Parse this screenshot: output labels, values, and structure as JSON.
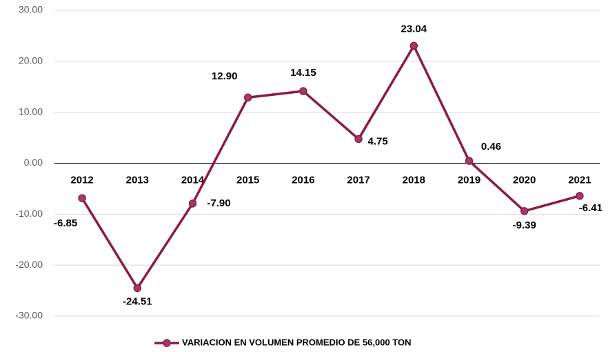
{
  "chart_data": {
    "type": "line",
    "categories": [
      "2012",
      "2013",
      "2014",
      "2015",
      "2016",
      "2017",
      "2018",
      "2019",
      "2020",
      "2021"
    ],
    "series": [
      {
        "name": "VARIACION EN VOLUMEN PROMEDIO DE 56,000 TON",
        "color": "#8b1a47",
        "values": [
          -6.85,
          -24.51,
          -7.9,
          12.9,
          14.15,
          4.75,
          23.04,
          0.46,
          -9.39,
          -6.41
        ],
        "value_labels": [
          "-6.85",
          "-24.51",
          "-7.90",
          "12.90",
          "14.15",
          "4.75",
          "23.04",
          "0.46",
          "-9.39",
          "-6.41"
        ]
      }
    ],
    "ylim": [
      -30,
      30
    ],
    "yticks": [
      {
        "value": -30,
        "label": "-30.00"
      },
      {
        "value": -20,
        "label": "-20.00"
      },
      {
        "value": -10,
        "label": "-10.00"
      },
      {
        "value": 0,
        "label": "0.00"
      },
      {
        "value": 10,
        "label": "10.00"
      },
      {
        "value": 20,
        "label": "20.00"
      },
      {
        "value": 30,
        "label": "30.00"
      }
    ],
    "grid": true,
    "legend": "bottom"
  }
}
